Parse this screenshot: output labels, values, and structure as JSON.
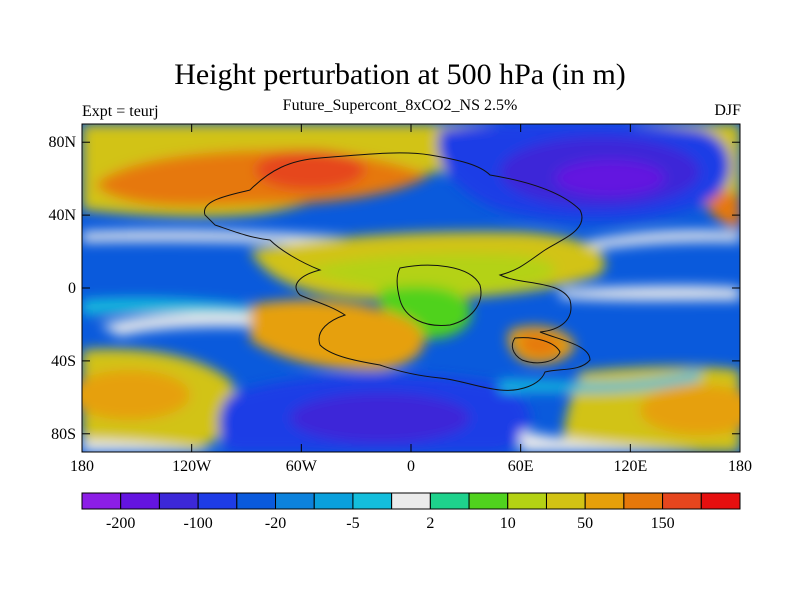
{
  "title": "Height perturbation at 500 hPa (in m)",
  "subtitle": "Future_Supercont_8xCO2_NS 2.5%",
  "left_label": "Expt = teurj",
  "right_label": "DJF",
  "chart_data": {
    "type": "heatmap",
    "projection": "cylindrical equidistant (lon/lat)",
    "xlim": [
      -180,
      180
    ],
    "ylim": [
      -90,
      90
    ],
    "x_ticks": [
      {
        "value": -180,
        "label": "180"
      },
      {
        "value": -120,
        "label": "120W"
      },
      {
        "value": -60,
        "label": "60W"
      },
      {
        "value": 0,
        "label": "0"
      },
      {
        "value": 60,
        "label": "60E"
      },
      {
        "value": 120,
        "label": "120E"
      },
      {
        "value": 180,
        "label": "180"
      }
    ],
    "y_ticks": [
      {
        "value": 80,
        "label": "80N"
      },
      {
        "value": 40,
        "label": "40N"
      },
      {
        "value": 0,
        "label": "0"
      },
      {
        "value": -40,
        "label": "40S"
      },
      {
        "value": -80,
        "label": "80S"
      }
    ],
    "colorbar": {
      "colors": [
        "#8c1ee6",
        "#6414e0",
        "#3c28d8",
        "#1e3ce6",
        "#0a5adc",
        "#0c82dc",
        "#0aa0dc",
        "#14bedc",
        "#ebebeb",
        "#1ed28c",
        "#50d21e",
        "#b4d214",
        "#d2c314",
        "#e6a00a",
        "#e6780a",
        "#e6461e",
        "#e60f0f"
      ],
      "labels": [
        {
          "after_box": 1,
          "text": "-200"
        },
        {
          "after_box": 3,
          "text": "-100"
        },
        {
          "after_box": 5,
          "text": "-20"
        },
        {
          "after_box": 7,
          "text": "-5"
        },
        {
          "after_box": 9,
          "text": "2"
        },
        {
          "after_box": 11,
          "text": "10"
        },
        {
          "after_box": 13,
          "text": "50"
        },
        {
          "after_box": 15,
          "text": "150"
        }
      ]
    },
    "features": [
      {
        "name": "north-pacific-high",
        "lon": -135,
        "lat": 52,
        "value": 130,
        "level": "positive"
      },
      {
        "name": "north-central-high",
        "lon": -60,
        "lat": 60,
        "value": 170,
        "level": "positive"
      },
      {
        "name": "north-eastern-low",
        "lon": 110,
        "lat": 62,
        "value": -220,
        "level": "negative"
      },
      {
        "name": "southern-central-low",
        "lon": -20,
        "lat": -72,
        "value": -150,
        "level": "negative"
      },
      {
        "name": "southern-western-high",
        "lon": -150,
        "lat": -60,
        "value": 110,
        "level": "positive"
      },
      {
        "name": "southern-eastern-high",
        "lon": 150,
        "lat": -62,
        "value": 100,
        "level": "positive"
      },
      {
        "name": "subtropical-band",
        "lon": 0,
        "lat": 15,
        "value": 40,
        "level": "positive"
      },
      {
        "name": "indian-ocean-high",
        "lon": 68,
        "lat": -36,
        "value": 90,
        "level": "positive"
      }
    ],
    "grid": false
  }
}
